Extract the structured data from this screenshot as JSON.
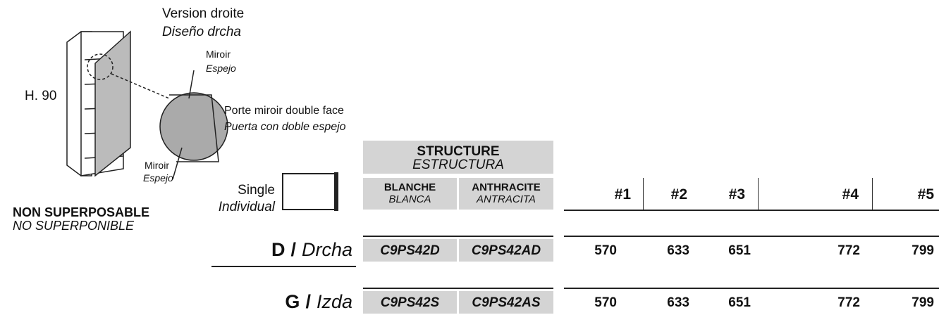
{
  "illustration": {
    "version": "Version droite",
    "version_es": "Diseño drcha",
    "mirror_top": "Miroir",
    "mirror_top_es": "Espejo",
    "height": "H. 90",
    "door": "Porte miroir double face",
    "door_es": "Puerta con doble espejo",
    "mirror_bottom": "Miroir",
    "mirror_bottom_es": "Espejo"
  },
  "stacking": {
    "fr": "NON SUPERPOSABLE",
    "es": "NO SUPERPONIBLE"
  },
  "size": {
    "fr": "Single",
    "es": "Individual"
  },
  "table": {
    "structure": {
      "fr": "STRUCTURE",
      "es": "ESTRUCTURA"
    },
    "finishes": [
      {
        "fr": "BLANCHE",
        "es": "BLANCA"
      },
      {
        "fr": "ANTHRACITE",
        "es": "ANTRACITA"
      }
    ],
    "price_headers": [
      "#1",
      "#2",
      "#3",
      "#4",
      "#5"
    ],
    "rows": [
      {
        "code": "D",
        "separator": "/",
        "name": "Drcha",
        "refs": [
          "C9PS42D",
          "C9PS42AD"
        ],
        "prices": [
          570,
          633,
          651,
          772,
          799
        ]
      },
      {
        "code": "G",
        "separator": "/",
        "name": "Izda",
        "refs": [
          "C9PS42S",
          "C9PS42AS"
        ],
        "prices": [
          570,
          633,
          651,
          772,
          799
        ]
      }
    ]
  }
}
